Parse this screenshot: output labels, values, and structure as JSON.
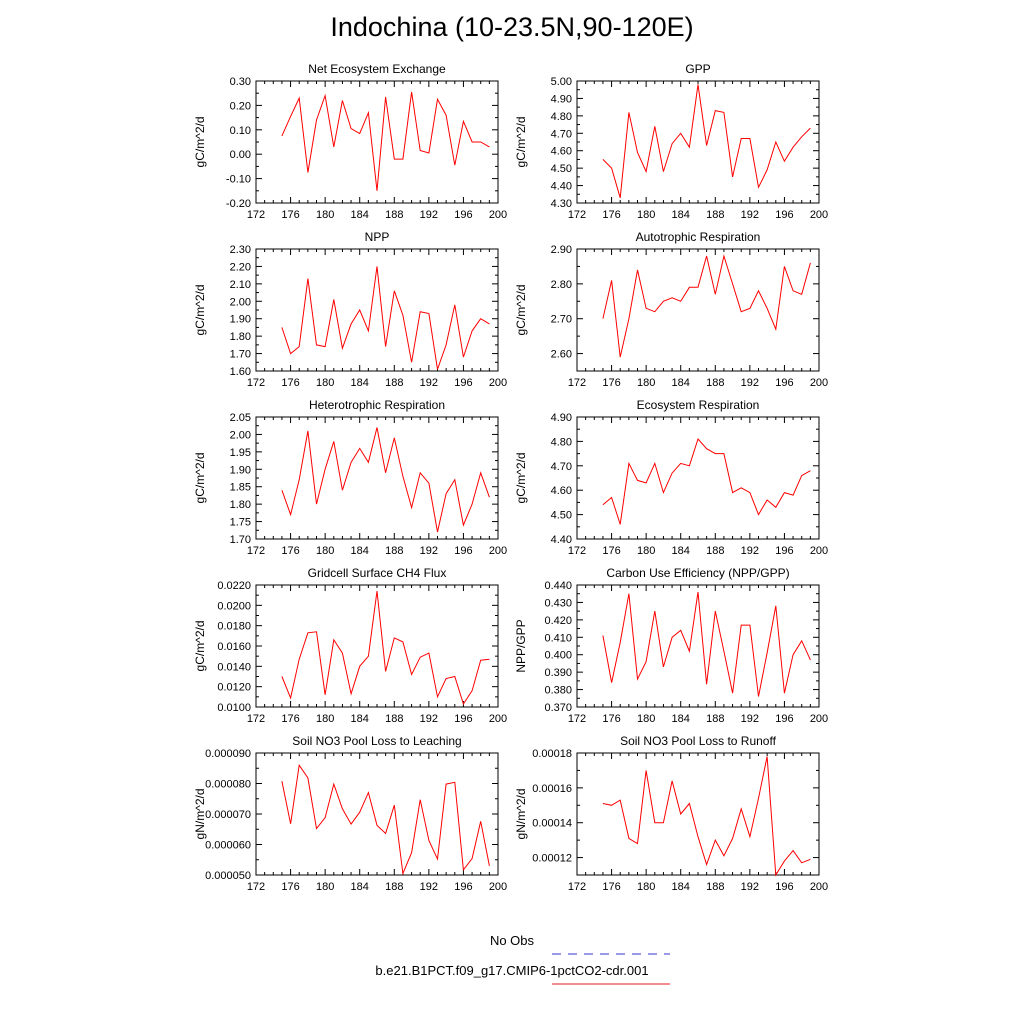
{
  "title": "Indochina (10-23.5N,90-120E)",
  "legend": [
    {
      "label": "No Obs",
      "color": "#3333cc",
      "style": "dashed"
    },
    {
      "label": "b.e21.B1PCT.f09_g17.CMIP6-1pctCO2-cdr.001",
      "color": "#e41a1c",
      "style": "solid"
    }
  ],
  "series_color": "#ff0000",
  "chart_data": [
    {
      "type": "line",
      "title": "Net Ecosystem Exchange",
      "ylabel": "gC/m^2/d",
      "xlim": [
        172,
        200
      ],
      "xticks": [
        172,
        176,
        180,
        184,
        188,
        192,
        196,
        200
      ],
      "ylim": [
        -0.2,
        0.3
      ],
      "yticks": [
        -0.2,
        -0.1,
        0.0,
        0.1,
        0.2,
        0.3
      ],
      "ytick_labels": [
        "-0.20",
        "-0.10",
        "0.00",
        "0.10",
        "0.20",
        "0.30"
      ],
      "x": [
        175,
        176,
        177,
        178,
        179,
        180,
        181,
        182,
        183,
        184,
        185,
        186,
        187,
        188,
        189,
        190,
        191,
        192,
        193,
        194,
        195,
        196,
        197,
        198,
        199
      ],
      "y": [
        0.075,
        0.155,
        0.23,
        -0.075,
        0.14,
        0.24,
        0.03,
        0.22,
        0.105,
        0.085,
        0.17,
        -0.15,
        0.235,
        -0.02,
        -0.02,
        0.255,
        0.015,
        0.005,
        0.225,
        0.16,
        -0.045,
        0.135,
        0.05,
        0.05,
        0.03
      ]
    },
    {
      "type": "line",
      "title": "GPP",
      "ylabel": "gC/m^2/d",
      "xlim": [
        172,
        200
      ],
      "xticks": [
        172,
        176,
        180,
        184,
        188,
        192,
        196,
        200
      ],
      "ylim": [
        4.3,
        5.0
      ],
      "yticks": [
        4.3,
        4.4,
        4.5,
        4.6,
        4.7,
        4.8,
        4.9,
        5.0
      ],
      "ytick_labels": [
        "4.30",
        "4.40",
        "4.50",
        "4.60",
        "4.70",
        "4.80",
        "4.90",
        "5.00"
      ],
      "x": [
        175,
        176,
        177,
        178,
        179,
        180,
        181,
        182,
        183,
        184,
        185,
        186,
        187,
        188,
        189,
        190,
        191,
        192,
        193,
        194,
        195,
        196,
        197,
        198,
        199
      ],
      "y": [
        4.55,
        4.5,
        4.33,
        4.82,
        4.59,
        4.48,
        4.74,
        4.48,
        4.64,
        4.7,
        4.62,
        4.98,
        4.63,
        4.83,
        4.82,
        4.45,
        4.67,
        4.67,
        4.39,
        4.49,
        4.65,
        4.54,
        4.62,
        4.68,
        4.73
      ]
    },
    {
      "type": "line",
      "title": "NPP",
      "ylabel": "gC/m^2/d",
      "xlim": [
        172,
        200
      ],
      "xticks": [
        172,
        176,
        180,
        184,
        188,
        192,
        196,
        200
      ],
      "ylim": [
        1.6,
        2.3
      ],
      "yticks": [
        1.6,
        1.7,
        1.8,
        1.9,
        2.0,
        2.1,
        2.2,
        2.3
      ],
      "ytick_labels": [
        "1.60",
        "1.70",
        "1.80",
        "1.90",
        "2.00",
        "2.10",
        "2.20",
        "2.30"
      ],
      "x": [
        175,
        176,
        177,
        178,
        179,
        180,
        181,
        182,
        183,
        184,
        185,
        186,
        187,
        188,
        189,
        190,
        191,
        192,
        193,
        194,
        195,
        196,
        197,
        198,
        199
      ],
      "y": [
        1.85,
        1.7,
        1.74,
        2.13,
        1.75,
        1.74,
        2.01,
        1.73,
        1.87,
        1.95,
        1.83,
        2.2,
        1.74,
        2.06,
        1.92,
        1.65,
        1.94,
        1.93,
        1.61,
        1.75,
        1.98,
        1.68,
        1.83,
        1.9,
        1.87
      ]
    },
    {
      "type": "line",
      "title": "Autotrophic Respiration",
      "ylabel": "gC/m^2/d",
      "xlim": [
        172,
        200
      ],
      "xticks": [
        172,
        176,
        180,
        184,
        188,
        192,
        196,
        200
      ],
      "ylim": [
        2.55,
        2.9
      ],
      "yticks": [
        2.6,
        2.7,
        2.8,
        2.9
      ],
      "ytick_labels": [
        "2.60",
        "2.70",
        "2.80",
        "2.90"
      ],
      "x": [
        175,
        176,
        177,
        178,
        179,
        180,
        181,
        182,
        183,
        184,
        185,
        186,
        187,
        188,
        189,
        190,
        191,
        192,
        193,
        194,
        195,
        196,
        197,
        198,
        199
      ],
      "y": [
        2.7,
        2.81,
        2.59,
        2.7,
        2.84,
        2.73,
        2.72,
        2.75,
        2.76,
        2.75,
        2.79,
        2.79,
        2.88,
        2.77,
        2.88,
        2.8,
        2.72,
        2.73,
        2.78,
        2.73,
        2.67,
        2.85,
        2.78,
        2.77,
        2.86
      ]
    },
    {
      "type": "line",
      "title": "Heterotrophic Respiration",
      "ylabel": "gC/m^2/d",
      "xlim": [
        172,
        200
      ],
      "xticks": [
        172,
        176,
        180,
        184,
        188,
        192,
        196,
        200
      ],
      "ylim": [
        1.7,
        2.05
      ],
      "yticks": [
        1.7,
        1.75,
        1.8,
        1.85,
        1.9,
        1.95,
        2.0,
        2.05
      ],
      "ytick_labels": [
        "1.70",
        "1.75",
        "1.80",
        "1.85",
        "1.90",
        "1.95",
        "2.00",
        "2.05"
      ],
      "x": [
        175,
        176,
        177,
        178,
        179,
        180,
        181,
        182,
        183,
        184,
        185,
        186,
        187,
        188,
        189,
        190,
        191,
        192,
        193,
        194,
        195,
        196,
        197,
        198,
        199
      ],
      "y": [
        1.84,
        1.77,
        1.87,
        2.01,
        1.8,
        1.9,
        1.98,
        1.84,
        1.92,
        1.96,
        1.92,
        2.02,
        1.89,
        1.99,
        1.88,
        1.79,
        1.89,
        1.86,
        1.72,
        1.83,
        1.87,
        1.74,
        1.8,
        1.89,
        1.82
      ]
    },
    {
      "type": "line",
      "title": "Ecosystem Respiration",
      "ylabel": "gC/m^2/d",
      "xlim": [
        172,
        200
      ],
      "xticks": [
        172,
        176,
        180,
        184,
        188,
        192,
        196,
        200
      ],
      "ylim": [
        4.4,
        4.9
      ],
      "yticks": [
        4.4,
        4.5,
        4.6,
        4.7,
        4.8,
        4.9
      ],
      "ytick_labels": [
        "4.40",
        "4.50",
        "4.60",
        "4.70",
        "4.80",
        "4.90"
      ],
      "x": [
        175,
        176,
        177,
        178,
        179,
        180,
        181,
        182,
        183,
        184,
        185,
        186,
        187,
        188,
        189,
        190,
        191,
        192,
        193,
        194,
        195,
        196,
        197,
        198,
        199
      ],
      "y": [
        4.54,
        4.57,
        4.46,
        4.71,
        4.64,
        4.63,
        4.71,
        4.59,
        4.67,
        4.71,
        4.7,
        4.81,
        4.77,
        4.75,
        4.75,
        4.59,
        4.61,
        4.59,
        4.5,
        4.56,
        4.53,
        4.59,
        4.58,
        4.66,
        4.68
      ]
    },
    {
      "type": "line",
      "title": "Gridcell Surface CH4 Flux",
      "ylabel": "gC/m^2/d",
      "xlim": [
        172,
        200
      ],
      "xticks": [
        172,
        176,
        180,
        184,
        188,
        192,
        196,
        200
      ],
      "ylim": [
        0.01,
        0.022
      ],
      "yticks": [
        0.01,
        0.012,
        0.014,
        0.016,
        0.018,
        0.02,
        0.022
      ],
      "ytick_labels": [
        "0.0100",
        "0.0120",
        "0.0140",
        "0.0160",
        "0.0180",
        "0.0200",
        "0.0220"
      ],
      "x": [
        175,
        176,
        177,
        178,
        179,
        180,
        181,
        182,
        183,
        184,
        185,
        186,
        187,
        188,
        189,
        190,
        191,
        192,
        193,
        194,
        195,
        196,
        197,
        198,
        199
      ],
      "y": [
        0.013,
        0.0109,
        0.0147,
        0.0173,
        0.0174,
        0.0112,
        0.0166,
        0.0153,
        0.0113,
        0.014,
        0.015,
        0.0214,
        0.0135,
        0.0168,
        0.0164,
        0.0132,
        0.0149,
        0.0153,
        0.011,
        0.0128,
        0.013,
        0.0103,
        0.0116,
        0.0146,
        0.0147
      ]
    },
    {
      "type": "line",
      "title": "Carbon Use Efficiency (NPP/GPP)",
      "ylabel": "NPP/GPP",
      "xlim": [
        172,
        200
      ],
      "xticks": [
        172,
        176,
        180,
        184,
        188,
        192,
        196,
        200
      ],
      "ylim": [
        0.37,
        0.44
      ],
      "yticks": [
        0.37,
        0.38,
        0.39,
        0.4,
        0.41,
        0.42,
        0.43,
        0.44
      ],
      "ytick_labels": [
        "0.370",
        "0.380",
        "0.390",
        "0.400",
        "0.410",
        "0.420",
        "0.430",
        "0.440"
      ],
      "x": [
        175,
        176,
        177,
        178,
        179,
        180,
        181,
        182,
        183,
        184,
        185,
        186,
        187,
        188,
        189,
        190,
        191,
        192,
        193,
        194,
        195,
        196,
        197,
        198,
        199
      ],
      "y": [
        0.411,
        0.384,
        0.407,
        0.435,
        0.386,
        0.396,
        0.425,
        0.393,
        0.41,
        0.414,
        0.402,
        0.436,
        0.383,
        0.425,
        0.402,
        0.378,
        0.417,
        0.417,
        0.376,
        0.401,
        0.428,
        0.378,
        0.4,
        0.408,
        0.397
      ]
    },
    {
      "type": "line",
      "title": "Soil NO3 Pool Loss to Leaching",
      "ylabel": "gN/m^2/d",
      "xlim": [
        172,
        200
      ],
      "xticks": [
        172,
        176,
        180,
        184,
        188,
        192,
        196,
        200
      ],
      "ylim": [
        5e-05,
        9e-05
      ],
      "yticks": [
        5e-05,
        6e-05,
        7e-05,
        8e-05,
        9e-05
      ],
      "ytick_labels": [
        "0.000050",
        "0.000060",
        "0.000070",
        "0.000080",
        "0.000090"
      ],
      "x": [
        175,
        176,
        177,
        178,
        179,
        180,
        181,
        182,
        183,
        184,
        185,
        186,
        187,
        188,
        189,
        190,
        191,
        192,
        193,
        194,
        195,
        196,
        197,
        198,
        199
      ],
      "y": [
        8.08e-05,
        6.68e-05,
        8.6e-05,
        8.18e-05,
        6.52e-05,
        6.88e-05,
        7.98e-05,
        7.17e-05,
        6.67e-05,
        7.06e-05,
        7.7e-05,
        6.63e-05,
        6.36e-05,
        7.29e-05,
        5.05e-05,
        5.73e-05,
        7.47e-05,
        6.13e-05,
        5.52e-05,
        7.98e-05,
        8.04e-05,
        5.17e-05,
        5.54e-05,
        6.76e-05,
        5.3e-05
      ]
    },
    {
      "type": "line",
      "title": "Soil NO3 Pool Loss to Runoff",
      "ylabel": "gN/m^2/d",
      "xlim": [
        172,
        200
      ],
      "xticks": [
        172,
        176,
        180,
        184,
        188,
        192,
        196,
        200
      ],
      "ylim": [
        0.00011,
        0.00018
      ],
      "yticks": [
        0.00012,
        0.00014,
        0.00016,
        0.00018
      ],
      "ytick_labels": [
        "0.00012",
        "0.00014",
        "0.00016",
        "0.00018"
      ],
      "x": [
        175,
        176,
        177,
        178,
        179,
        180,
        181,
        182,
        183,
        184,
        185,
        186,
        187,
        188,
        189,
        190,
        191,
        192,
        193,
        194,
        195,
        196,
        197,
        198,
        199
      ],
      "y": [
        0.000151,
        0.00015,
        0.000153,
        0.000131,
        0.000128,
        0.00017,
        0.00014,
        0.00014,
        0.000164,
        0.000145,
        0.000151,
        0.000132,
        0.000116,
        0.00013,
        0.000121,
        0.000131,
        0.000148,
        0.000132,
        0.000154,
        0.000178,
        0.00011,
        0.000118,
        0.000124,
        0.000117,
        0.000119
      ]
    }
  ]
}
